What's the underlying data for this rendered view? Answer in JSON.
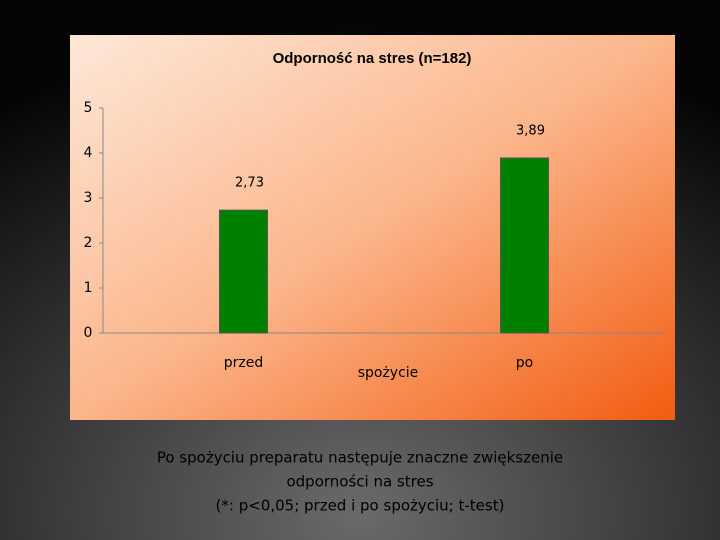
{
  "chart_data": {
    "type": "bar",
    "title": "Odporność na stres (n=182)",
    "categories": [
      "przed",
      "po"
    ],
    "values": [
      2.73,
      3.89
    ],
    "value_labels": [
      "2,73",
      "3,89"
    ],
    "color": "#008000",
    "x_label": "spożycie",
    "ylim": [
      0,
      5
    ],
    "yticks": [
      0,
      1,
      2,
      3,
      4,
      5
    ],
    "grid": false
  },
  "caption": [
    "Po spożyciu preparatu następuje znaczne zwiększenie",
    "odporności na stres",
    "(*: p<0,05; przed i po spożyciu; t-test)"
  ]
}
